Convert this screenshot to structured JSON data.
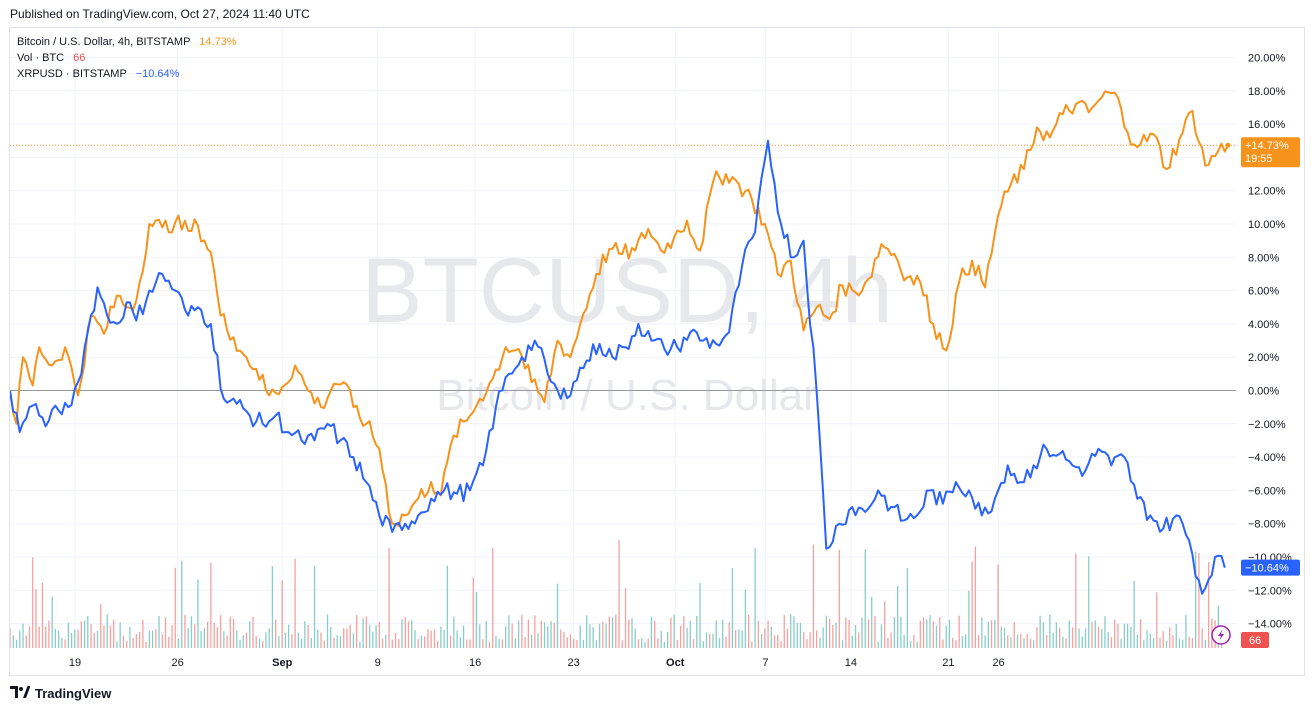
{
  "published": "Published on TradingView.com, Oct 27, 2024 11:40 UTC",
  "footer": {
    "brand": "TradingView",
    "logo_icon": "tradingview-logo-icon"
  },
  "legend": {
    "main": {
      "name": "Bitcoin / U.S. Dollar, 4h, BITSTAMP",
      "value": "14.73%",
      "color": "#f7931a"
    },
    "vol": {
      "name": "Vol · BTC",
      "value": "66",
      "color": "#ef5350"
    },
    "compare": {
      "name": "XRPUSD · BITSTAMP",
      "value": "−10.64%",
      "color": "#2962ff"
    }
  },
  "watermark": {
    "symbol": "BTCUSD, 4h",
    "description": "Bitcoin / U.S. Dollar"
  },
  "price_labels": {
    "btc_value": "+14.73%",
    "btc_countdown": "19:55",
    "xrp_value": "−10.64%",
    "vol_value": "66"
  },
  "chart_data": {
    "type": "line",
    "x_ticks": [
      "19",
      "26",
      "Sep",
      "9",
      "16",
      "23",
      "Oct",
      "7",
      "14",
      "21",
      "26"
    ],
    "y_ticks": [
      "20.00%",
      "18.00%",
      "16.00%",
      "14.00%",
      "12.00%",
      "10.00%",
      "8.00%",
      "6.00%",
      "4.00%",
      "2.00%",
      "0.00%",
      "−2.00%",
      "−4.00%",
      "−6.00%",
      "−8.00%",
      "−10.00%",
      "−12.00%",
      "−14.00%"
    ],
    "ylim": [
      -15.5,
      21.5
    ],
    "y_scale": "percent",
    "grid": true,
    "series": [
      {
        "name": "Bitcoin / U.S. Dollar, 4h, BITSTAMP",
        "color": "#f7931a",
        "keypoints": [
          [
            0,
            0.0
          ],
          [
            2,
            -2.0
          ],
          [
            4,
            2.0
          ],
          [
            7,
            0.3
          ],
          [
            9,
            2.6
          ],
          [
            13,
            1.5
          ],
          [
            17,
            2.6
          ],
          [
            21,
            -0.3
          ],
          [
            25,
            4.5
          ],
          [
            29,
            3.4
          ],
          [
            33,
            5.7
          ],
          [
            36,
            5.0
          ],
          [
            39,
            5.4
          ],
          [
            43,
            10.0
          ],
          [
            47,
            9.8
          ],
          [
            51,
            10.1
          ],
          [
            55,
            9.6
          ],
          [
            58,
            9.9
          ],
          [
            62,
            8.3
          ],
          [
            65,
            4.5
          ],
          [
            69,
            3.2
          ],
          [
            72,
            2.2
          ],
          [
            76,
            1.3
          ],
          [
            80,
            -0.3
          ],
          [
            84,
            0.2
          ],
          [
            88,
            1.5
          ],
          [
            92,
            0.0
          ],
          [
            96,
            -1.0
          ],
          [
            100,
            0.4
          ],
          [
            103,
            0.5
          ],
          [
            106,
            -1.0
          ],
          [
            110,
            -2.0
          ],
          [
            114,
            -3.5
          ],
          [
            118,
            -8.0
          ],
          [
            122,
            -7.5
          ],
          [
            126,
            -6.5
          ],
          [
            130,
            -5.5
          ],
          [
            133,
            -6.3
          ],
          [
            137,
            -2.7
          ],
          [
            141,
            -1.8
          ],
          [
            145,
            -0.5
          ],
          [
            149,
            0.7
          ],
          [
            153,
            2.6
          ],
          [
            157,
            2.5
          ],
          [
            161,
            0.5
          ],
          [
            165,
            -0.7
          ],
          [
            169,
            3.0
          ],
          [
            173,
            2.0
          ],
          [
            177,
            4.6
          ],
          [
            181,
            7.0
          ],
          [
            185,
            8.5
          ],
          [
            189,
            8.2
          ],
          [
            193,
            8.4
          ],
          [
            197,
            9.7
          ],
          [
            201,
            8.4
          ],
          [
            205,
            9.2
          ],
          [
            209,
            10.2
          ],
          [
            213,
            8.4
          ],
          [
            217,
            12.5
          ],
          [
            221,
            13.0
          ],
          [
            225,
            12.4
          ],
          [
            229,
            11.5
          ],
          [
            233,
            10.0
          ],
          [
            237,
            7.0
          ],
          [
            241,
            7.8
          ],
          [
            245,
            3.6
          ],
          [
            249,
            5.0
          ],
          [
            253,
            4.3
          ],
          [
            257,
            6.3
          ],
          [
            261,
            5.9
          ],
          [
            265,
            6.7
          ],
          [
            269,
            8.8
          ],
          [
            273,
            8.2
          ],
          [
            277,
            6.8
          ],
          [
            281,
            6.5
          ],
          [
            285,
            4.0
          ],
          [
            289,
            2.4
          ],
          [
            293,
            6.5
          ],
          [
            297,
            7.8
          ],
          [
            301,
            6.2
          ],
          [
            305,
            10.5
          ],
          [
            309,
            12.4
          ],
          [
            313,
            13.3
          ],
          [
            317,
            15.8
          ],
          [
            321,
            15.2
          ],
          [
            325,
            16.6
          ],
          [
            329,
            17.2
          ],
          [
            333,
            16.7
          ],
          [
            337,
            17.6
          ],
          [
            341,
            17.9
          ],
          [
            345,
            15.5
          ],
          [
            349,
            14.8
          ],
          [
            353,
            15.4
          ],
          [
            357,
            13.3
          ],
          [
            361,
            15.1
          ],
          [
            365,
            16.8
          ],
          [
            369,
            13.5
          ],
          [
            373,
            14.4
          ],
          [
            376,
            14.73
          ]
        ]
      },
      {
        "name": "XRPUSD · BITSTAMP",
        "color": "#2962ff",
        "keypoints": [
          [
            0,
            0.0
          ],
          [
            3,
            -2.5
          ],
          [
            6,
            -1.0
          ],
          [
            9,
            -1.5
          ],
          [
            12,
            -1.8
          ],
          [
            15,
            -1.2
          ],
          [
            18,
            -1.0
          ],
          [
            21,
            0.5
          ],
          [
            24,
            3.5
          ],
          [
            27,
            6.2
          ],
          [
            30,
            4.5
          ],
          [
            33,
            4.0
          ],
          [
            36,
            5.3
          ],
          [
            39,
            4.2
          ],
          [
            43,
            6.0
          ],
          [
            47,
            7.0
          ],
          [
            51,
            6.0
          ],
          [
            55,
            4.5
          ],
          [
            58,
            5.0
          ],
          [
            62,
            4.0
          ],
          [
            66,
            -0.5
          ],
          [
            70,
            -0.8
          ],
          [
            74,
            -1.5
          ],
          [
            78,
            -2.0
          ],
          [
            82,
            -1.5
          ],
          [
            86,
            -2.5
          ],
          [
            90,
            -3.0
          ],
          [
            94,
            -3.0
          ],
          [
            98,
            -2.0
          ],
          [
            102,
            -3.0
          ],
          [
            106,
            -4.0
          ],
          [
            110,
            -5.5
          ],
          [
            114,
            -7.5
          ],
          [
            118,
            -8.5
          ],
          [
            122,
            -8.0
          ],
          [
            126,
            -7.5
          ],
          [
            130,
            -6.5
          ],
          [
            134,
            -6.0
          ],
          [
            138,
            -6.2
          ],
          [
            142,
            -6.0
          ],
          [
            146,
            -4.5
          ],
          [
            150,
            -1.0
          ],
          [
            154,
            1.0
          ],
          [
            158,
            2.0
          ],
          [
            162,
            3.0
          ],
          [
            166,
            1.0
          ],
          [
            170,
            -0.5
          ],
          [
            174,
            0.5
          ],
          [
            178,
            1.8
          ],
          [
            182,
            2.8
          ],
          [
            186,
            2.0
          ],
          [
            190,
            2.6
          ],
          [
            194,
            4.0
          ],
          [
            198,
            3.0
          ],
          [
            202,
            2.5
          ],
          [
            206,
            2.6
          ],
          [
            210,
            3.5
          ],
          [
            214,
            3.0
          ],
          [
            218,
            2.8
          ],
          [
            222,
            3.5
          ],
          [
            226,
            7.5
          ],
          [
            230,
            9.5
          ],
          [
            234,
            15.0
          ],
          [
            238,
            10.0
          ],
          [
            242,
            8.0
          ],
          [
            245,
            9.0
          ],
          [
            249,
            0.0
          ],
          [
            252,
            -9.5
          ],
          [
            256,
            -8.0
          ],
          [
            260,
            -7.0
          ],
          [
            264,
            -7.3
          ],
          [
            268,
            -6.0
          ],
          [
            272,
            -7.0
          ],
          [
            276,
            -7.8
          ],
          [
            280,
            -7.5
          ],
          [
            284,
            -6.0
          ],
          [
            288,
            -6.8
          ],
          [
            292,
            -5.5
          ],
          [
            296,
            -6.0
          ],
          [
            300,
            -7.5
          ],
          [
            304,
            -6.5
          ],
          [
            308,
            -4.5
          ],
          [
            312,
            -5.5
          ],
          [
            316,
            -4.5
          ],
          [
            320,
            -3.5
          ],
          [
            324,
            -3.8
          ],
          [
            328,
            -4.5
          ],
          [
            332,
            -4.8
          ],
          [
            336,
            -3.5
          ],
          [
            340,
            -4.5
          ],
          [
            344,
            -4.0
          ],
          [
            348,
            -6.5
          ],
          [
            352,
            -7.5
          ],
          [
            356,
            -8.3
          ],
          [
            360,
            -7.5
          ],
          [
            364,
            -9.0
          ],
          [
            368,
            -12.2
          ],
          [
            372,
            -10.0
          ],
          [
            375,
            -10.64
          ]
        ]
      }
    ],
    "volume": {
      "name": "Vol · BTC",
      "last": 66,
      "up_color": "#26a69a",
      "down_color": "#ef5350"
    }
  }
}
